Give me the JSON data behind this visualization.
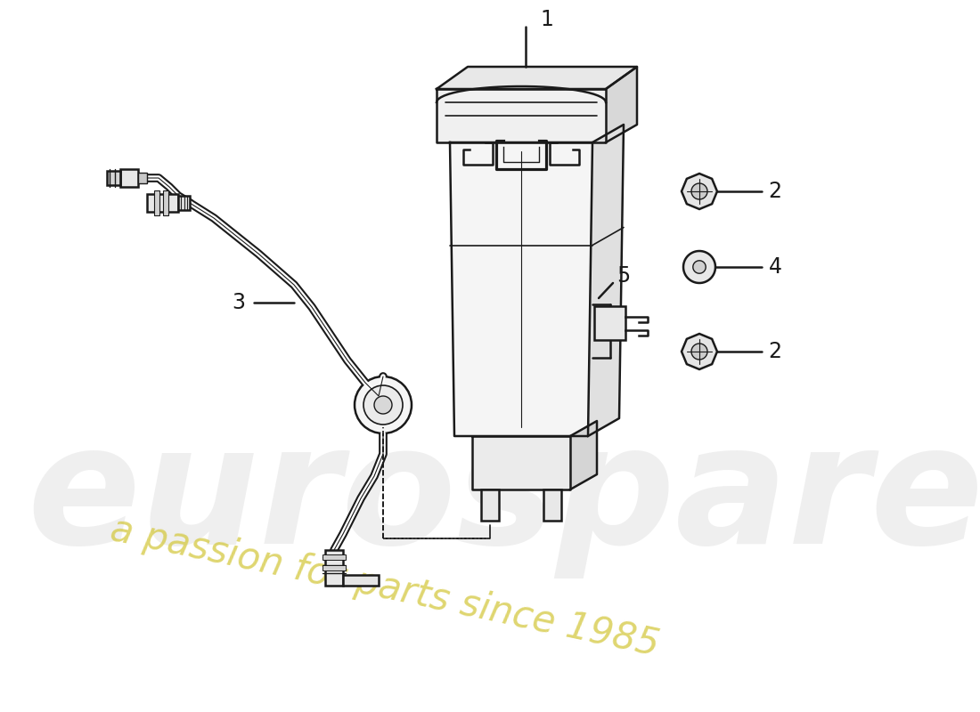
{
  "background_color": "#ffffff",
  "line_color": "#1a1a1a",
  "watermark_text1": "eurospares",
  "watermark_text2": "a passion for parts since 1985",
  "watermark_color1": "#cccccc",
  "watermark_color2": "#d4c840",
  "figsize": [
    11.0,
    8.0
  ],
  "dpi": 100
}
